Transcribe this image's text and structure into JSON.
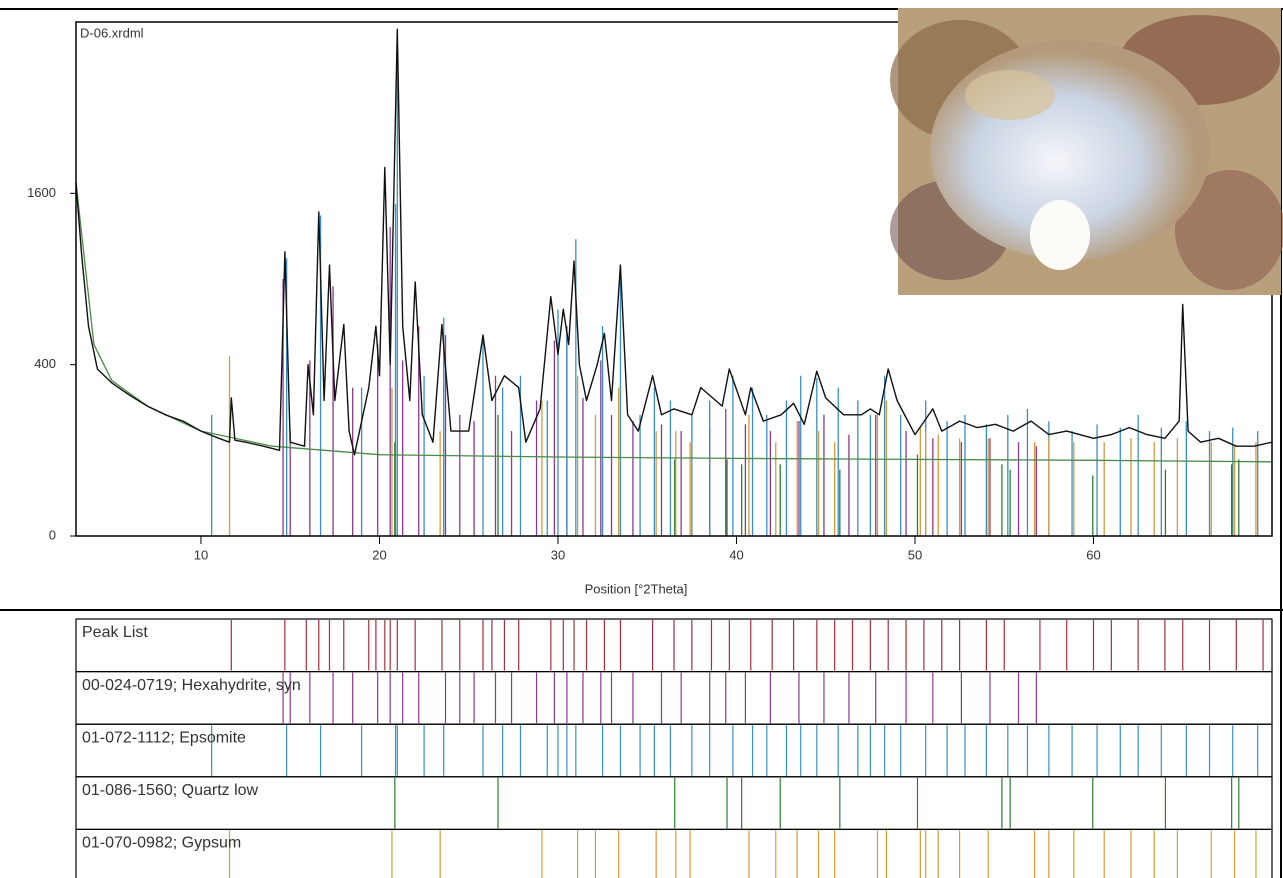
{
  "chart_data": {
    "type": "line",
    "title": "D-06.xrdml",
    "x_label": "Position [°2Theta]",
    "xlim": [
      3,
      70
    ],
    "ylim": [
      0,
      3600
    ],
    "yscale": "sqrt",
    "xticks": [
      10,
      20,
      30,
      40,
      50,
      60
    ],
    "yticks": [
      0,
      400,
      1600
    ],
    "x": [
      3,
      3.3,
      3.7,
      4.2,
      5,
      6,
      7,
      8,
      9,
      10,
      11,
      11.6,
      11.7,
      11.9,
      12.5,
      13.5,
      14.4,
      14.7,
      15.0,
      15.8,
      16.0,
      16.3,
      16.6,
      16.9,
      17.2,
      17.5,
      18.0,
      18.3,
      18.6,
      19.4,
      19.8,
      20.0,
      20.3,
      20.6,
      21.0,
      21.3,
      21.7,
      22.0,
      22.4,
      23.0,
      23.5,
      24.0,
      25.0,
      25.8,
      26.3,
      27.0,
      27.8,
      28.2,
      29.0,
      29.6,
      30.0,
      30.3,
      30.6,
      30.9,
      31.2,
      31.6,
      32.2,
      32.6,
      33.0,
      33.5,
      33.9,
      34.5,
      35.3,
      35.8,
      36.5,
      37.5,
      38.0,
      39.2,
      39.6,
      40.5,
      40.8,
      41.5,
      42.5,
      43.2,
      43.8,
      44.5,
      45.0,
      46.0,
      47.0,
      47.5,
      48.0,
      48.5,
      49.0,
      50.0,
      51.0,
      51.5,
      52.5,
      53.5,
      54.5,
      55.5,
      56.5,
      57.5,
      58.5,
      60.0,
      61.0,
      62.0,
      63.0,
      64.0,
      64.8,
      65.0,
      65.3,
      66.0,
      67.0,
      68.0,
      69.0,
      70.0
    ],
    "series": [
      {
        "color": "#111111",
        "values": [
          1700,
          1100,
          600,
          380,
          320,
          270,
          230,
          200,
          180,
          150,
          130,
          120,
          260,
          125,
          120,
          110,
          100,
          1100,
          120,
          110,
          400,
          200,
          1430,
          250,
          1000,
          250,
          610,
          150,
          90,
          300,
          600,
          350,
          1850,
          400,
          3500,
          600,
          250,
          880,
          200,
          120,
          610,
          150,
          150,
          550,
          250,
          350,
          300,
          120,
          220,
          780,
          450,
          700,
          500,
          1030,
          400,
          250,
          400,
          560,
          250,
          1000,
          200,
          150,
          350,
          200,
          220,
          200,
          300,
          230,
          380,
          200,
          300,
          180,
          200,
          240,
          170,
          370,
          260,
          200,
          200,
          220,
          200,
          380,
          250,
          140,
          220,
          150,
          180,
          160,
          170,
          150,
          180,
          140,
          150,
          130,
          140,
          160,
          140,
          130,
          180,
          730,
          150,
          120,
          130,
          110,
          110,
          120
        ]
      }
    ],
    "background": {
      "color": "#4a8a4a",
      "x": [
        3,
        4,
        5,
        7,
        10,
        14,
        20,
        30,
        40,
        50,
        60,
        70
      ],
      "values": [
        1700,
        500,
        330,
        230,
        150,
        110,
        90,
        85,
        82,
        80,
        78,
        75
      ]
    },
    "phases": [
      {
        "name": "Peak List",
        "color": "#a3303c",
        "positions": [
          11.7,
          14.7,
          15.9,
          16.6,
          17.2,
          18.0,
          19.4,
          19.8,
          20.3,
          20.6,
          21.0,
          22.0,
          23.5,
          24.5,
          25.8,
          26.3,
          27.0,
          27.8,
          29.6,
          30.3,
          30.9,
          31.6,
          32.6,
          33.5,
          35.3,
          36.5,
          37.5,
          38.6,
          39.6,
          40.8,
          42.0,
          43.2,
          44.5,
          45.5,
          46.5,
          47.5,
          48.5,
          49.5,
          50.5,
          51.5,
          52.5,
          54.0,
          55.0,
          57.0,
          58.5,
          60.0,
          61.0,
          62.5,
          64.0,
          65.0,
          66.5,
          68.0,
          69.5
        ]
      },
      {
        "name": "00-024-0719; Hexahydrite, syn",
        "color": "#8a3a8e",
        "positions": [
          14.6,
          15.0,
          16.1,
          17.4,
          18.5,
          19.9,
          20.6,
          21.3,
          22.2,
          23.7,
          24.5,
          25.3,
          26.5,
          27.4,
          28.8,
          29.8,
          30.5,
          31.4,
          32.4,
          33.0,
          34.2,
          35.8,
          36.9,
          38.5,
          39.4,
          40.5,
          41.9,
          43.5,
          44.9,
          46.3,
          47.8,
          49.5,
          51.0,
          52.6,
          54.2,
          55.8,
          56.8
        ],
        "intensities": [
          900,
          150,
          420,
          850,
          300,
          500,
          1300,
          420,
          600,
          550,
          200,
          180,
          350,
          150,
          250,
          520,
          600,
          260,
          420,
          200,
          180,
          170,
          150,
          160,
          220,
          170,
          150,
          180,
          200,
          140,
          200,
          150,
          130,
          120,
          130,
          120,
          110
        ]
      },
      {
        "name": "01-072-1112; Epsomite",
        "color": "#3a8fc0",
        "positions": [
          10.6,
          14.8,
          16.7,
          19.0,
          20.9,
          21.0,
          22.5,
          23.6,
          25.8,
          26.9,
          27.9,
          29.4,
          30.0,
          30.5,
          31.0,
          32.5,
          33.5,
          34.6,
          35.4,
          36.3,
          37.5,
          38.5,
          39.8,
          40.9,
          41.7,
          42.8,
          43.6,
          44.5,
          45.7,
          46.8,
          47.5,
          48.3,
          49.2,
          50.6,
          51.8,
          52.8,
          54.0,
          55.2,
          56.3,
          57.5,
          58.8,
          60.2,
          61.5,
          62.5,
          63.8,
          65.2,
          66.5,
          67.8,
          69.2
        ],
        "intensities": [
          200,
          1050,
          1400,
          300,
          1500,
          3400,
          350,
          650,
          550,
          300,
          350,
          250,
          700,
          600,
          1200,
          600,
          1000,
          200,
          300,
          250,
          200,
          250,
          350,
          300,
          200,
          250,
          350,
          340,
          300,
          250,
          200,
          350,
          200,
          250,
          180,
          200,
          170,
          200,
          220,
          180,
          150,
          170,
          160,
          200,
          160,
          180,
          150,
          160,
          150
        ]
      },
      {
        "name": "01-086-1560; Quartz low",
        "color": "#2e7d32",
        "positions": [
          20.86,
          26.64,
          36.54,
          39.47,
          40.29,
          42.45,
          45.79,
          50.14,
          54.87,
          55.33,
          59.96,
          64.03,
          67.74,
          68.14
        ],
        "intensities": [
          120,
          200,
          80,
          80,
          70,
          70,
          60,
          90,
          70,
          60,
          50,
          60,
          70,
          80
        ]
      },
      {
        "name": "01-070-0982; Gypsum",
        "color": "#d89a3a",
        "positions": [
          11.6,
          20.7,
          23.4,
          29.1,
          31.1,
          32.1,
          33.4,
          35.5,
          36.6,
          37.4,
          40.7,
          42.2,
          43.4,
          44.6,
          45.5,
          47.9,
          48.4,
          50.3,
          50.6,
          51.3,
          52.5,
          54.1,
          56.7,
          57.5,
          58.9,
          60.6,
          62.1,
          63.4,
          64.7,
          66.6,
          67.9,
          69.1
        ],
        "intensities": [
          440,
          300,
          150,
          250,
          350,
          200,
          300,
          150,
          150,
          120,
          200,
          120,
          180,
          150,
          120,
          200,
          250,
          160,
          150,
          140,
          130,
          130,
          120,
          130,
          120,
          120,
          130,
          120,
          130,
          120,
          110,
          120
        ]
      }
    ]
  }
}
